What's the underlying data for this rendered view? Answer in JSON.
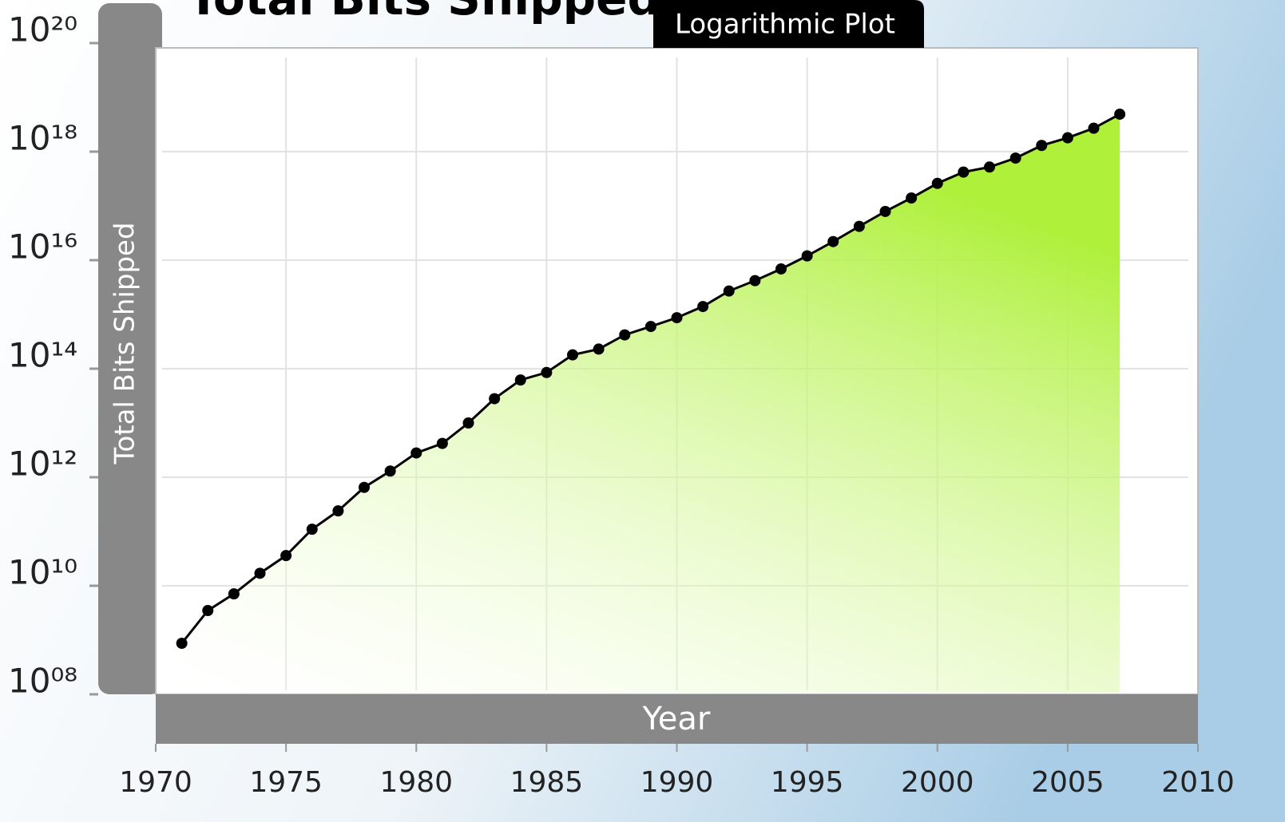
{
  "chart_data": {
    "type": "line",
    "title": "Total Bits Shipped",
    "subtitle": "Logarithmic Plot",
    "x_label": "Year",
    "y_label": "Total Bits Shipped",
    "xlim": [
      1970,
      2010
    ],
    "xticks": [
      1970,
      1975,
      1980,
      1985,
      1990,
      1995,
      2000,
      2005,
      2010
    ],
    "ylim": [
      100000000.0,
      1e+20
    ],
    "yscale": "log",
    "yticks": [
      {
        "value": 100000000.0,
        "label": "10⁰⁸"
      },
      {
        "value": 10000000000.0,
        "label": "10¹⁰"
      },
      {
        "value": 1000000000000.0,
        "label": "10¹²"
      },
      {
        "value": 100000000000000.0,
        "label": "10¹⁴"
      },
      {
        "value": 1e+16,
        "label": "10¹⁶"
      },
      {
        "value": 1e+18,
        "label": "10¹⁸"
      },
      {
        "value": 1e+20,
        "label": "10²⁰"
      }
    ],
    "grid": true,
    "area_color": "#aef03a",
    "x": [
      1971,
      1972,
      1973,
      1974,
      1975,
      1976,
      1977,
      1978,
      1979,
      1980,
      1981,
      1982,
      1983,
      1984,
      1985,
      1986,
      1987,
      1988,
      1989,
      1990,
      1991,
      1992,
      1993,
      1994,
      1995,
      1996,
      1997,
      1998,
      1999,
      2000,
      2001,
      2002,
      2003,
      2004,
      2005,
      2006,
      2007
    ],
    "series": [
      {
        "color": "#000000",
        "values": [
          870000000.0,
          3500000000.0,
          7100000000.0,
          17000000000.0,
          36000000000.0,
          110000000000.0,
          240000000000.0,
          650000000000.0,
          1300000000000.0,
          2800000000000.0,
          4200000000000.0,
          10000000000000.0,
          28000000000000.0,
          62000000000000.0,
          85000000000000.0,
          180000000000000.0,
          230000000000000.0,
          420000000000000.0,
          600000000000000.0,
          870000000000000.0,
          1400000000000000.0,
          2700000000000000.0,
          4200000000000000.0,
          6900000000000000.0,
          1.2e+16,
          2.2e+16,
          4.2e+16,
          7.9e+16,
          1.4e+17,
          2.6e+17,
          4.2e+17,
          5.2e+17,
          7.6e+17,
          1.3e+18,
          1.8e+18,
          2.7e+18,
          4.9e+18
        ]
      }
    ]
  }
}
